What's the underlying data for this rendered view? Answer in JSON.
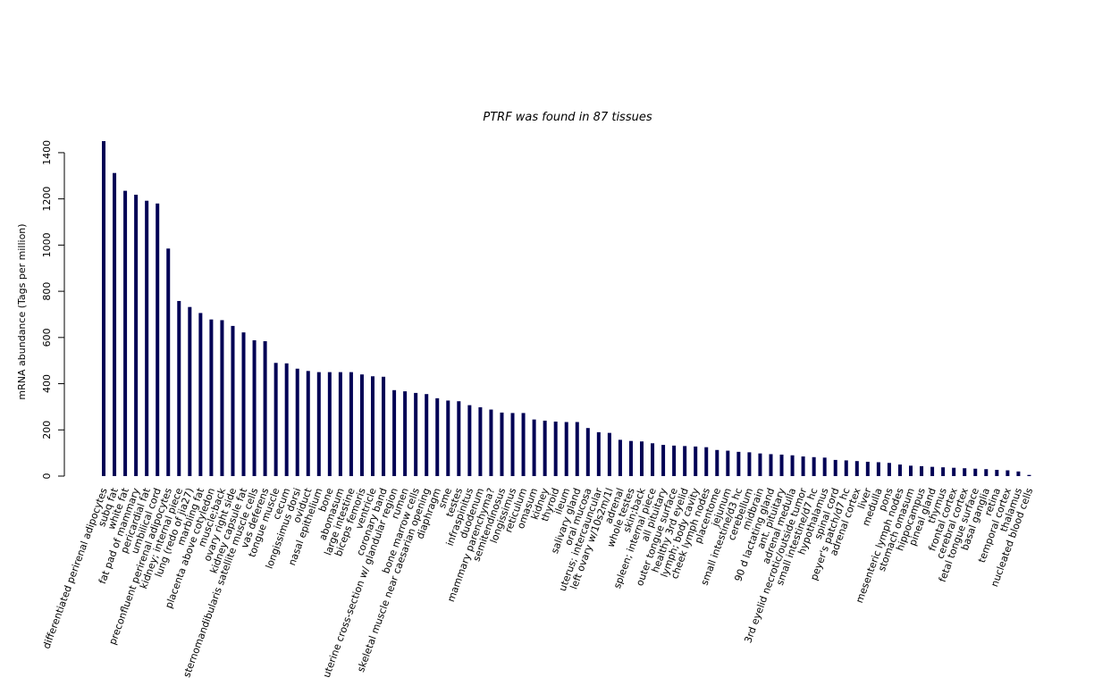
{
  "chart_data": {
    "type": "bar",
    "title": "PTRF  was found in  87  tissues",
    "xlabel": "",
    "ylabel": "mRNA abundance (Tags per million)",
    "ylim": [
      0,
      1450
    ],
    "yticks": [
      0,
      200,
      400,
      600,
      800,
      1000,
      1200,
      1400
    ],
    "grid": false,
    "bar_color": "#000055",
    "categories": [
      "differentiated perirenal adipocytes",
      "subq fat",
      "white fat",
      "fat pad of mammary",
      "pericardial fat",
      "umbilical cord",
      "preconfluent perirenal adipocytes",
      "kidney; internal piece",
      "lung (redo of jia27)",
      "marbling fat",
      "placenta above cotyledon",
      "muscle;back",
      "ovary right side",
      "kidney capsule fat",
      "sternomandibularis satellite muscle cells",
      "vas deferens",
      "tongue muscle",
      "cecum",
      "longissimus dorsi",
      "oviduct",
      "nasal epithelium",
      "bone",
      "abomasum",
      "large intestine",
      "biceps femoris",
      "ventricle",
      "coronary band",
      "uterine cross-section w/ glandular region",
      "rumen",
      "bone marrow cells",
      "skeletal muscle near caesarian opening",
      "diaphragm",
      "sme",
      "testes",
      "infraspinitus",
      "duodenum",
      "mammary parenchyma?",
      "semitendinosus",
      "longissimus",
      "reticulum",
      "omasum",
      "kidney",
      "thyroid",
      "ileum",
      "salivary gland",
      "oral mucosa",
      "uterus; intercauncular",
      "left ovary w/10s2m/1l",
      "adrenal",
      "whole testes",
      "skin;back",
      "spleen; internal piece",
      "all pituitary",
      "outer tongue surface",
      "healthy 3rd eyelid",
      "lymph; body cavity",
      "cheek lymph nodes",
      "placentome",
      "jejunum",
      "small intestine/d3 hc",
      "cerebellum",
      "midbrain",
      "90 d lactating gland",
      "ant. pituitary",
      "adrenal medulla",
      "3rd eyelid necrotic/outside tumor",
      "small intestine/d7 hc",
      "hypothalamus",
      "spinal cord",
      "peyer's patch/d7 hc",
      "adrenal cortex",
      "liver",
      "medulla",
      "pons",
      "mesenteric lymph nodes",
      "stomach omasum",
      "hippocampus",
      "pineal gland",
      "thymus",
      "frontal cortex",
      "cerebral cortex",
      "fetal tongue surface",
      "basal ganglia",
      "retina",
      "temporal cortex",
      "thalamus",
      "nucleated blood cells"
    ],
    "values": [
      1450,
      1312,
      1235,
      1218,
      1192,
      1180,
      985,
      758,
      732,
      706,
      678,
      675,
      650,
      622,
      588,
      584,
      490,
      488,
      465,
      455,
      450,
      450,
      450,
      450,
      440,
      432,
      430,
      372,
      367,
      360,
      355,
      337,
      327,
      324,
      307,
      298,
      288,
      275,
      273,
      273,
      245,
      240,
      236,
      234,
      234,
      208,
      190,
      187,
      157,
      152,
      150,
      142,
      135,
      132,
      130,
      128,
      125,
      113,
      110,
      105,
      103,
      98,
      95,
      93,
      90,
      85,
      82,
      80,
      70,
      68,
      65,
      62,
      60,
      57,
      50,
      45,
      43,
      40,
      38,
      36,
      34,
      32,
      30,
      27,
      25,
      20,
      5
    ]
  }
}
